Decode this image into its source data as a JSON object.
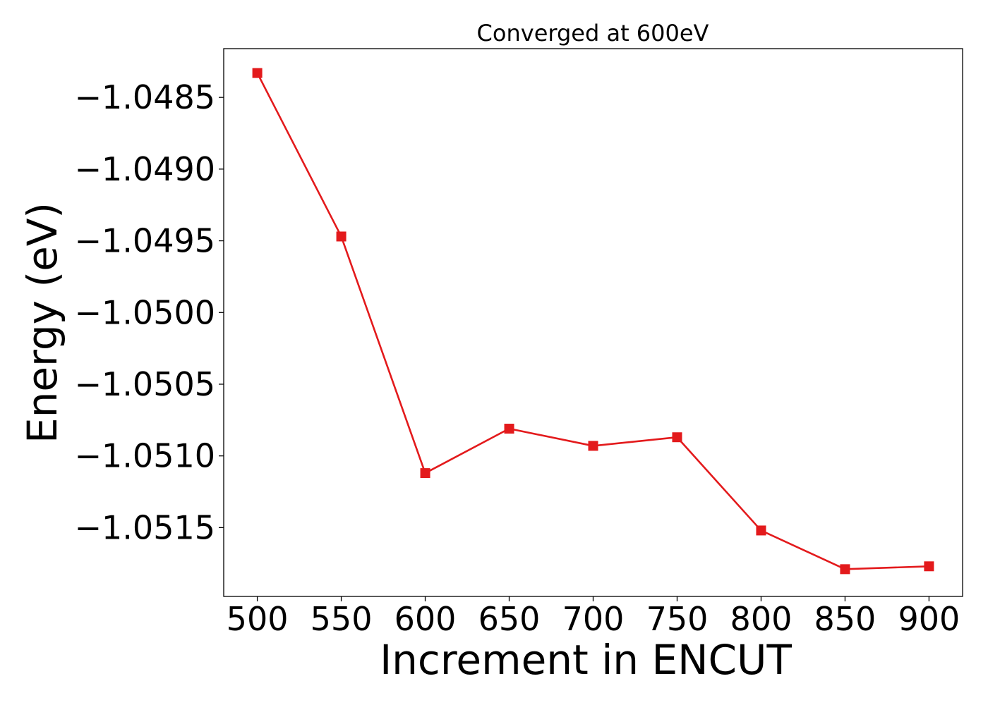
{
  "chart_data": {
    "type": "line",
    "title": "Converged at 600eV",
    "xlabel": "Increment in ENCUT",
    "ylabel": "Energy (eV)",
    "x": [
      500,
      550,
      600,
      650,
      700,
      750,
      800,
      850,
      900
    ],
    "series": [
      {
        "values": [
          -1.04833,
          -1.04947,
          -1.05112,
          -1.05081,
          -1.05093,
          -1.05087,
          -1.05152,
          -1.05179,
          -1.05177
        ],
        "color": "#e31a1c",
        "marker": "square"
      }
    ],
    "xlim": [
      480,
      920
    ],
    "ylim": [
      -1.05198,
      -1.04816
    ],
    "xticks": [
      500,
      550,
      600,
      650,
      700,
      750,
      800,
      850,
      900
    ],
    "xtick_labels": [
      "500",
      "550",
      "600",
      "650",
      "700",
      "750",
      "800",
      "850",
      "900"
    ],
    "yticks": [
      -1.0485,
      -1.049,
      -1.0495,
      -1.05,
      -1.0505,
      -1.051,
      -1.0515
    ],
    "ytick_labels": [
      "−1.0485",
      "−1.0490",
      "−1.0495",
      "−1.0500",
      "−1.0505",
      "−1.0510",
      "−1.0515"
    ],
    "grid": false,
    "legend": false
  }
}
